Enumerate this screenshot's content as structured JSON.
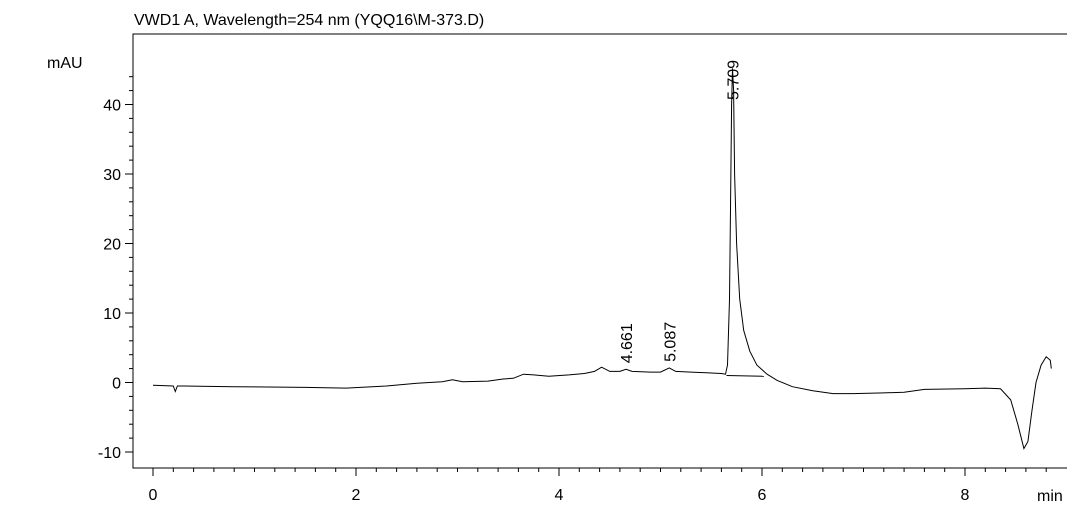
{
  "chart_data": {
    "type": "line",
    "title": "VWD1 A, Wavelength=254 nm (YQQ16\\M-373.D)",
    "ylabel": "mAU",
    "xlabel": "min",
    "xlim": [
      0,
      8.85
    ],
    "ylim": [
      -11.5,
      47
    ],
    "x_ticks": [
      0,
      2,
      4,
      6,
      8
    ],
    "y_ticks": [
      -10,
      0,
      10,
      20,
      30,
      40
    ],
    "grid": false,
    "series": [
      {
        "points": [
          [
            0.0,
            -0.4
          ],
          [
            0.2,
            -0.5
          ],
          [
            0.22,
            -1.3
          ],
          [
            0.24,
            -0.5
          ],
          [
            0.3,
            -0.5
          ],
          [
            0.8,
            -0.6
          ],
          [
            1.5,
            -0.7
          ],
          [
            1.9,
            -0.8
          ],
          [
            2.3,
            -0.5
          ],
          [
            2.6,
            -0.1
          ],
          [
            2.85,
            0.1
          ],
          [
            2.95,
            0.4
          ],
          [
            3.05,
            0.1
          ],
          [
            3.3,
            0.2
          ],
          [
            3.45,
            0.5
          ],
          [
            3.55,
            0.6
          ],
          [
            3.65,
            1.2
          ],
          [
            3.75,
            1.1
          ],
          [
            3.9,
            0.9
          ],
          [
            4.1,
            1.1
          ],
          [
            4.25,
            1.3
          ],
          [
            4.35,
            1.6
          ],
          [
            4.42,
            2.2
          ],
          [
            4.5,
            1.6
          ],
          [
            4.6,
            1.6
          ],
          [
            4.66,
            1.9
          ],
          [
            4.72,
            1.6
          ],
          [
            4.9,
            1.5
          ],
          [
            5.0,
            1.5
          ],
          [
            5.087,
            2.1
          ],
          [
            5.15,
            1.6
          ],
          [
            5.3,
            1.5
          ],
          [
            5.45,
            1.4
          ],
          [
            5.6,
            1.3
          ],
          [
            5.64,
            1.2
          ],
          [
            5.66,
            2.5
          ],
          [
            5.68,
            12.0
          ],
          [
            5.69,
            25.0
          ],
          [
            5.7,
            40.0
          ],
          [
            5.709,
            45.2
          ],
          [
            5.72,
            42.0
          ],
          [
            5.73,
            30.0
          ],
          [
            5.75,
            20.0
          ],
          [
            5.78,
            12.0
          ],
          [
            5.82,
            7.5
          ],
          [
            5.88,
            4.5
          ],
          [
            5.95,
            2.5
          ],
          [
            6.05,
            1.2
          ],
          [
            6.15,
            0.3
          ],
          [
            6.3,
            -0.6
          ],
          [
            6.5,
            -1.2
          ],
          [
            6.7,
            -1.6
          ],
          [
            6.9,
            -1.6
          ],
          [
            7.2,
            -1.5
          ],
          [
            7.4,
            -1.4
          ],
          [
            7.6,
            -1.0
          ],
          [
            8.0,
            -0.9
          ],
          [
            8.2,
            -0.8
          ],
          [
            8.35,
            -0.9
          ],
          [
            8.45,
            -2.5
          ],
          [
            8.52,
            -6.0
          ],
          [
            8.58,
            -9.5
          ],
          [
            8.62,
            -8.5
          ],
          [
            8.66,
            -4.0
          ],
          [
            8.7,
            0.0
          ],
          [
            8.75,
            2.5
          ],
          [
            8.8,
            3.7
          ],
          [
            8.84,
            3.2
          ],
          [
            8.85,
            2.0
          ]
        ]
      }
    ],
    "baselines": [
      {
        "x": [
          5.65,
          6.02
        ],
        "y": [
          1.0,
          0.9
        ]
      }
    ],
    "peak_labels": [
      {
        "x": 4.661,
        "y": 1.9,
        "label": "4.661"
      },
      {
        "x": 5.087,
        "y": 2.1,
        "label": "5.087"
      },
      {
        "x": 5.709,
        "y": 45.2,
        "label": "5.709"
      }
    ]
  }
}
